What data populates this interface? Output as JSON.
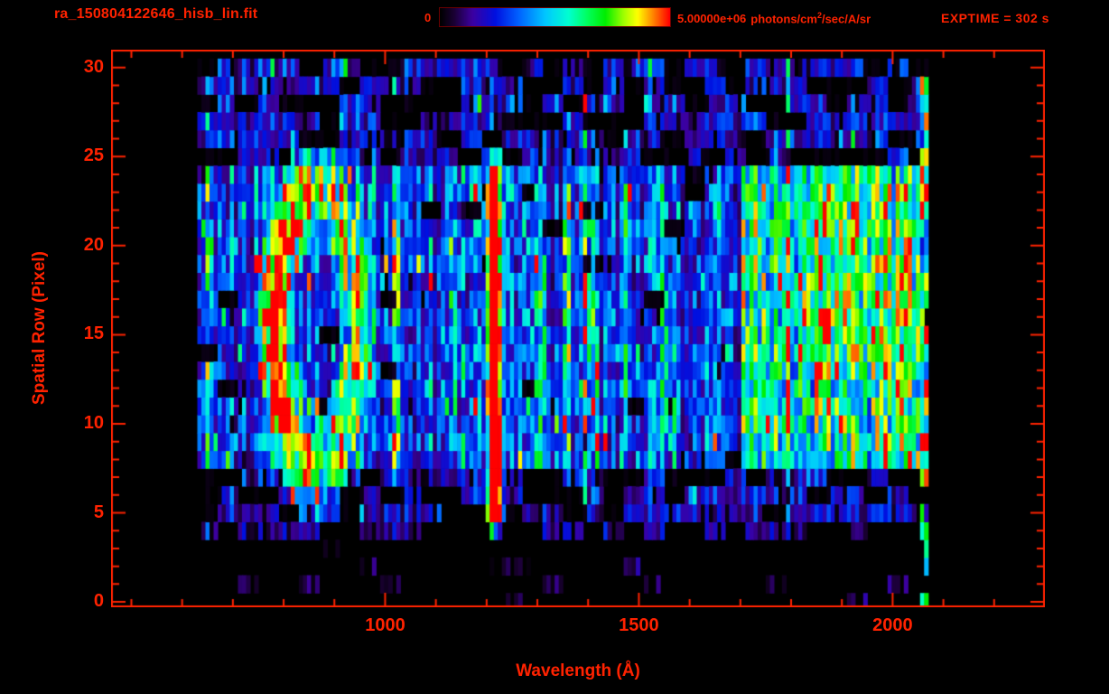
{
  "header": {
    "title": "ra_150804122646_hisb_lin.fit",
    "exptime": "EXPTIME = 302 s"
  },
  "colorbar": {
    "min_label": "0",
    "max_value": "5.00000e+06",
    "unit_pre": "photons/cm",
    "unit_sup": "2",
    "unit_post": "/sec/A/sr"
  },
  "colors": {
    "accent": "#ff2200",
    "background": "#000000"
  },
  "chart_data": {
    "type": "heatmap",
    "title": "ra_150804122646_hisb_lin.fit",
    "xlabel": "Wavelength (Å)",
    "ylabel": "Spatial Row (Pixel)",
    "xlim": [
      460,
      2300
    ],
    "ylim": [
      -0.3,
      31
    ],
    "x_ticks": [
      1000,
      1500,
      2000
    ],
    "x_minor_step": 100,
    "y_ticks": [
      0,
      5,
      10,
      15,
      20,
      25,
      30
    ],
    "y_minor_step": 1,
    "colorbar": {
      "min": 0,
      "max": 5000000,
      "units": "photons/cm2/sec/A/sr"
    },
    "exposure_seconds": 302,
    "grid": false,
    "data_extent": {
      "wavelength": [
        630,
        2068
      ],
      "rows": [
        0,
        30
      ]
    },
    "colormap_stops": [
      [
        0.0,
        "#000000"
      ],
      [
        0.06,
        "#1a0033"
      ],
      [
        0.14,
        "#3c00a0"
      ],
      [
        0.24,
        "#0010e0"
      ],
      [
        0.34,
        "#0060ff"
      ],
      [
        0.46,
        "#00c8ff"
      ],
      [
        0.56,
        "#00ffd0"
      ],
      [
        0.64,
        "#00ff60"
      ],
      [
        0.72,
        "#00ee00"
      ],
      [
        0.8,
        "#a0ff00"
      ],
      [
        0.86,
        "#ffff00"
      ],
      [
        0.93,
        "#ff8000"
      ],
      [
        1.0,
        "#ff0000"
      ]
    ],
    "row_profile": [
      {
        "rows": [
          0,
          3
        ],
        "base": 0.08,
        "dropout": 0.88
      },
      {
        "rows": [
          4,
          4
        ],
        "base": 0.13,
        "dropout": 0.55
      },
      {
        "rows": [
          5,
          7
        ],
        "base": 0.2,
        "dropout": 0.35
      },
      {
        "rows": [
          8,
          24
        ],
        "base": 0.3,
        "dropout": 0.04
      },
      {
        "rows": [
          25,
          30
        ],
        "base": 0.22,
        "dropout": 0.38
      }
    ],
    "features": [
      {
        "type": "ring",
        "x_center": 868,
        "row_center": 15.5,
        "x_radius": 82,
        "row_radius": 7.6,
        "thickness": 0.5,
        "intensity": 0.5,
        "left_boost": 0.9
      },
      {
        "type": "vline",
        "x": 1216,
        "sigma": 10,
        "rows": [
          5,
          24
        ],
        "intensity": 1.1
      },
      {
        "type": "vline",
        "x": 1025,
        "sigma": 6,
        "rows": [
          8,
          23
        ],
        "intensity": 0.26
      },
      {
        "type": "vline",
        "x": 1135,
        "sigma": 6,
        "rows": [
          9,
          23
        ],
        "intensity": 0.24
      },
      {
        "type": "vline",
        "x": 1304,
        "sigma": 8,
        "rows": [
          8,
          23
        ],
        "intensity": 0.3
      },
      {
        "type": "vline",
        "x": 1360,
        "sigma": 7,
        "rows": [
          8,
          23
        ],
        "intensity": 0.24
      },
      {
        "type": "vline",
        "x": 1410,
        "sigma": 7,
        "rows": [
          9,
          23
        ],
        "intensity": 0.2
      },
      {
        "type": "vline",
        "x": 1475,
        "sigma": 7,
        "rows": [
          9,
          23
        ],
        "intensity": 0.18
      },
      {
        "type": "vline",
        "x": 1555,
        "sigma": 8,
        "rows": [
          9,
          23
        ],
        "intensity": 0.14
      },
      {
        "type": "vline",
        "x": 1650,
        "sigma": 8,
        "rows": [
          9,
          23
        ],
        "intensity": 0.12
      },
      {
        "type": "band",
        "x_range": [
          1700,
          2055
        ],
        "rows": [
          8,
          24
        ],
        "intensity": 0.28
      },
      {
        "type": "band",
        "x_range": [
          1820,
          2050
        ],
        "rows": [
          13,
          23
        ],
        "intensity": 0.1
      },
      {
        "type": "vline",
        "x": 2062,
        "sigma": 4,
        "rows": [
          0,
          30
        ],
        "intensity": 0.85,
        "sparse": 0.5
      }
    ]
  }
}
